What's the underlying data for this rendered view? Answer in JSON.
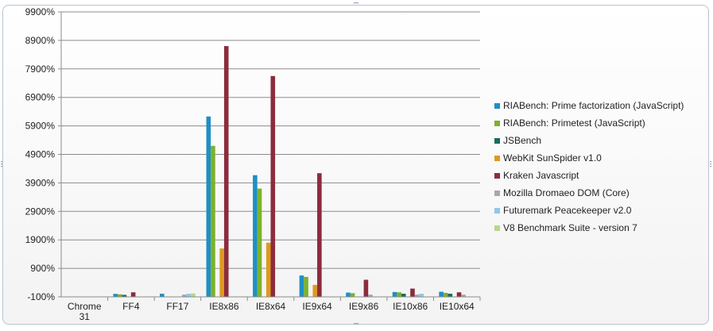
{
  "chart_data": {
    "type": "bar",
    "title": "",
    "xlabel": "",
    "ylabel": "",
    "ylim": [
      -100,
      9900
    ],
    "yticks": [
      "-100%",
      "900%",
      "1900%",
      "2900%",
      "3900%",
      "4900%",
      "5900%",
      "6900%",
      "7900%",
      "8900%",
      "9900%"
    ],
    "ytick_values": [
      -100,
      900,
      1900,
      2900,
      3900,
      4900,
      5900,
      6900,
      7900,
      8900,
      9900
    ],
    "categories": [
      [
        "Chrome",
        "31"
      ],
      [
        "FF4"
      ],
      [
        "FF17"
      ],
      [
        "IE8x86"
      ],
      [
        "IE8x64"
      ],
      [
        "IE9x64"
      ],
      [
        "IE9x86"
      ],
      [
        "IE10x86"
      ],
      [
        "IE10x64"
      ]
    ],
    "legend_position": "right",
    "grid": true,
    "series": [
      {
        "name": "RIABench: Prime factorization (JavaScript)",
        "color": "#1f8fc4",
        "values": [
          0,
          5,
          10,
          6230,
          4170,
          650,
          50,
          70,
          80
        ]
      },
      {
        "name": "RIABench: Primetest (JavaScript)",
        "color": "#7cb22a",
        "values": [
          0,
          -10,
          0,
          5200,
          3700,
          600,
          30,
          60,
          40
        ]
      },
      {
        "name": "JSBench",
        "color": "#1a6b5a",
        "values": [
          0,
          -30,
          0,
          0,
          0,
          0,
          0,
          10,
          10
        ]
      },
      {
        "name": "WebKit SunSpider v1.0",
        "color": "#de9a20",
        "values": [
          0,
          0,
          0,
          1600,
          1800,
          320,
          0,
          0,
          0
        ]
      },
      {
        "name": "Kraken Javascript",
        "color": "#8b2c3d",
        "values": [
          0,
          60,
          0,
          8700,
          7650,
          4240,
          500,
          190,
          60
        ]
      },
      {
        "name": "Mozilla Dromaeo DOM (Core)",
        "color": "#a8a8a8",
        "values": [
          0,
          0,
          -20,
          0,
          0,
          0,
          -20,
          -20,
          -20
        ]
      },
      {
        "name": "Futuremark Peacekeeper v2.0",
        "color": "#8ec8ea",
        "values": [
          0,
          0,
          10,
          0,
          0,
          0,
          0,
          10,
          0
        ]
      },
      {
        "name": "V8 Benchmark Suite - version 7",
        "color": "#b6d88a",
        "values": [
          0,
          0,
          20,
          0,
          0,
          0,
          0,
          0,
          0
        ]
      }
    ]
  }
}
